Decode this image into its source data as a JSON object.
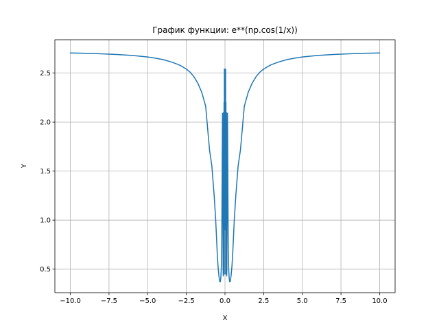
{
  "chart_data": {
    "type": "line",
    "title": "График функции: e**(np.cos(1/x))",
    "xlabel": "X",
    "ylabel": "Y",
    "xlim": [
      -11.0,
      11.0
    ],
    "ylim": [
      0.26,
      2.84
    ],
    "x_ticks": [
      -10.0,
      -7.5,
      -5.0,
      -2.5,
      0.0,
      2.5,
      5.0,
      7.5,
      10.0
    ],
    "x_tick_labels": [
      "−10.0",
      "−7.5",
      "−5.0",
      "−2.5",
      "0.0",
      "2.5",
      "5.0",
      "7.5",
      "10.0"
    ],
    "y_ticks": [
      0.5,
      1.0,
      1.5,
      2.0,
      2.5
    ],
    "y_tick_labels": [
      "0.5",
      "1.0",
      "1.5",
      "2.0",
      "2.5"
    ],
    "grid": true,
    "line_color": "#1f77b4",
    "grid_color": "#b0b0b0",
    "series": [
      {
        "x": [
          -10.0,
          -9.0,
          -8.0,
          -7.0,
          -6.0,
          -5.0,
          -4.5,
          -4.0,
          -3.5,
          -3.0,
          -2.75,
          -2.5,
          -2.25,
          -2.0,
          -1.75,
          -1.5,
          -1.25,
          -1.0,
          -0.85,
          -0.7,
          -0.6,
          -0.5,
          -0.45,
          -0.4,
          -0.35,
          -0.32,
          -0.3,
          -0.27,
          -0.24,
          -0.21,
          -0.2,
          -0.17,
          -0.16,
          -0.14,
          -0.12,
          -0.11,
          -0.1,
          -0.09,
          -0.08,
          -0.07,
          -0.06,
          -0.05,
          -0.04,
          -0.02,
          0.0,
          0.02,
          0.04,
          0.05,
          0.06,
          0.07,
          0.08,
          0.09,
          0.1,
          0.11,
          0.12,
          0.14,
          0.16,
          0.17,
          0.2,
          0.21,
          0.24,
          0.27,
          0.3,
          0.32,
          0.35,
          0.4,
          0.45,
          0.5,
          0.6,
          0.7,
          0.85,
          1.0,
          1.25,
          1.5,
          1.75,
          2.0,
          2.25,
          2.5,
          2.75,
          3.0,
          3.5,
          4.0,
          4.5,
          5.0,
          6.0,
          7.0,
          8.0,
          9.0,
          10.0
        ],
        "y": [
          2.705,
          2.702,
          2.697,
          2.69,
          2.68,
          2.664,
          2.652,
          2.637,
          2.615,
          2.586,
          2.565,
          2.541,
          2.509,
          2.461,
          2.395,
          2.303,
          2.162,
          1.717,
          1.553,
          1.251,
          1.0,
          0.659,
          0.53,
          0.442,
          0.381,
          0.37,
          0.373,
          0.41,
          0.5,
          0.72,
          1.0,
          1.9,
          2.09,
          1.2,
          0.5,
          0.43,
          0.7,
          2.1,
          0.85,
          0.45,
          2.2,
          0.45,
          2.54,
          0.9,
          2.54,
          0.9,
          2.54,
          0.45,
          2.2,
          0.45,
          0.85,
          2.1,
          0.7,
          0.43,
          0.5,
          1.2,
          2.09,
          1.9,
          1.0,
          0.72,
          0.5,
          0.41,
          0.373,
          0.37,
          0.381,
          0.442,
          0.53,
          0.659,
          1.0,
          1.251,
          1.553,
          1.717,
          2.162,
          2.303,
          2.395,
          2.461,
          2.509,
          2.541,
          2.565,
          2.586,
          2.615,
          2.637,
          2.652,
          2.664,
          2.68,
          2.69,
          2.697,
          2.702,
          2.705
        ]
      }
    ]
  }
}
